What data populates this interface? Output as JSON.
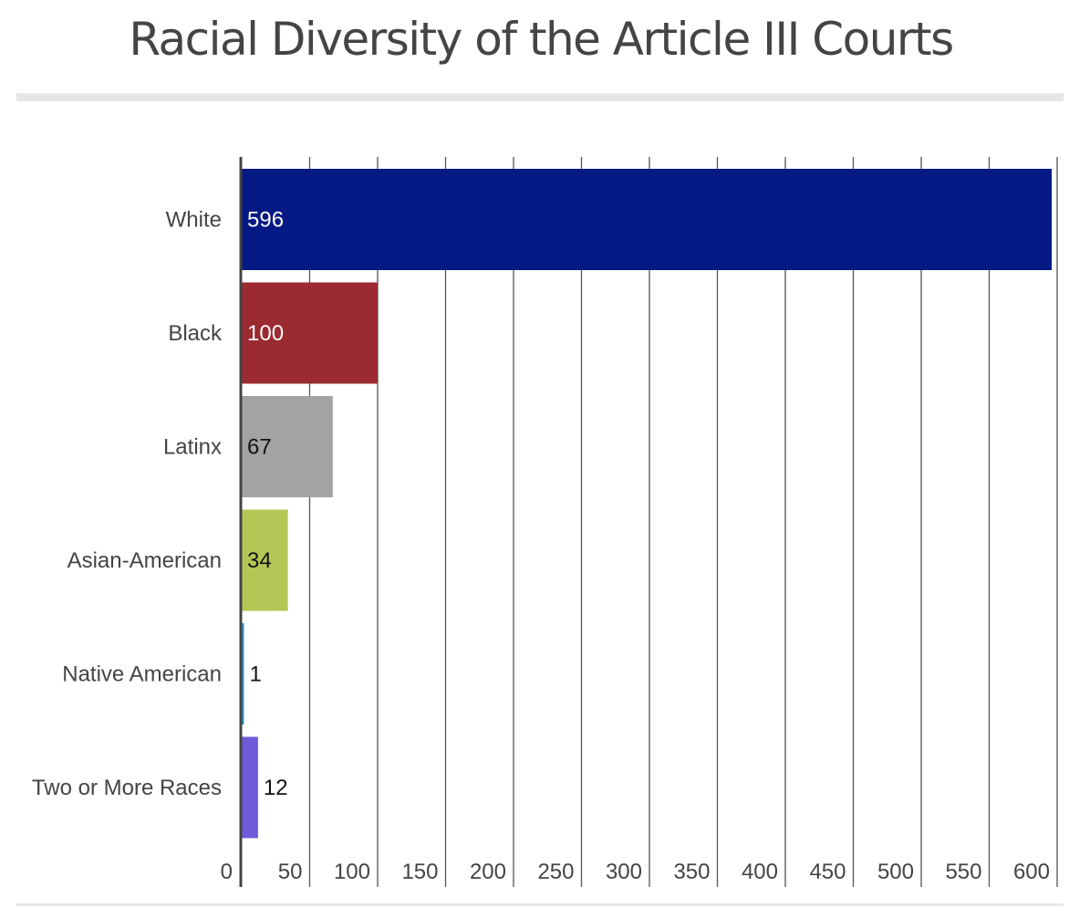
{
  "chart_data": {
    "type": "bar",
    "orientation": "horizontal",
    "title": "Racial Diversity of the Article III Courts",
    "categories": [
      "White",
      "Black",
      "Latinx",
      "Asian-American",
      "Native American",
      "Two or More Races"
    ],
    "values": [
      596,
      100,
      67,
      34,
      1,
      12
    ],
    "colors": [
      "#041984",
      "#9b2a31",
      "#a3a3a3",
      "#b3c756",
      "#2f90c8",
      "#6f5bd9"
    ],
    "label_colors": [
      "#ffffff",
      "#ffffff",
      "#111111",
      "#111111",
      "#111111",
      "#111111"
    ],
    "xticks": [
      0,
      50,
      100,
      150,
      200,
      250,
      300,
      350,
      400,
      450,
      500,
      550,
      600
    ],
    "xlim": [
      0,
      600
    ],
    "grid": true,
    "legend": "none"
  }
}
